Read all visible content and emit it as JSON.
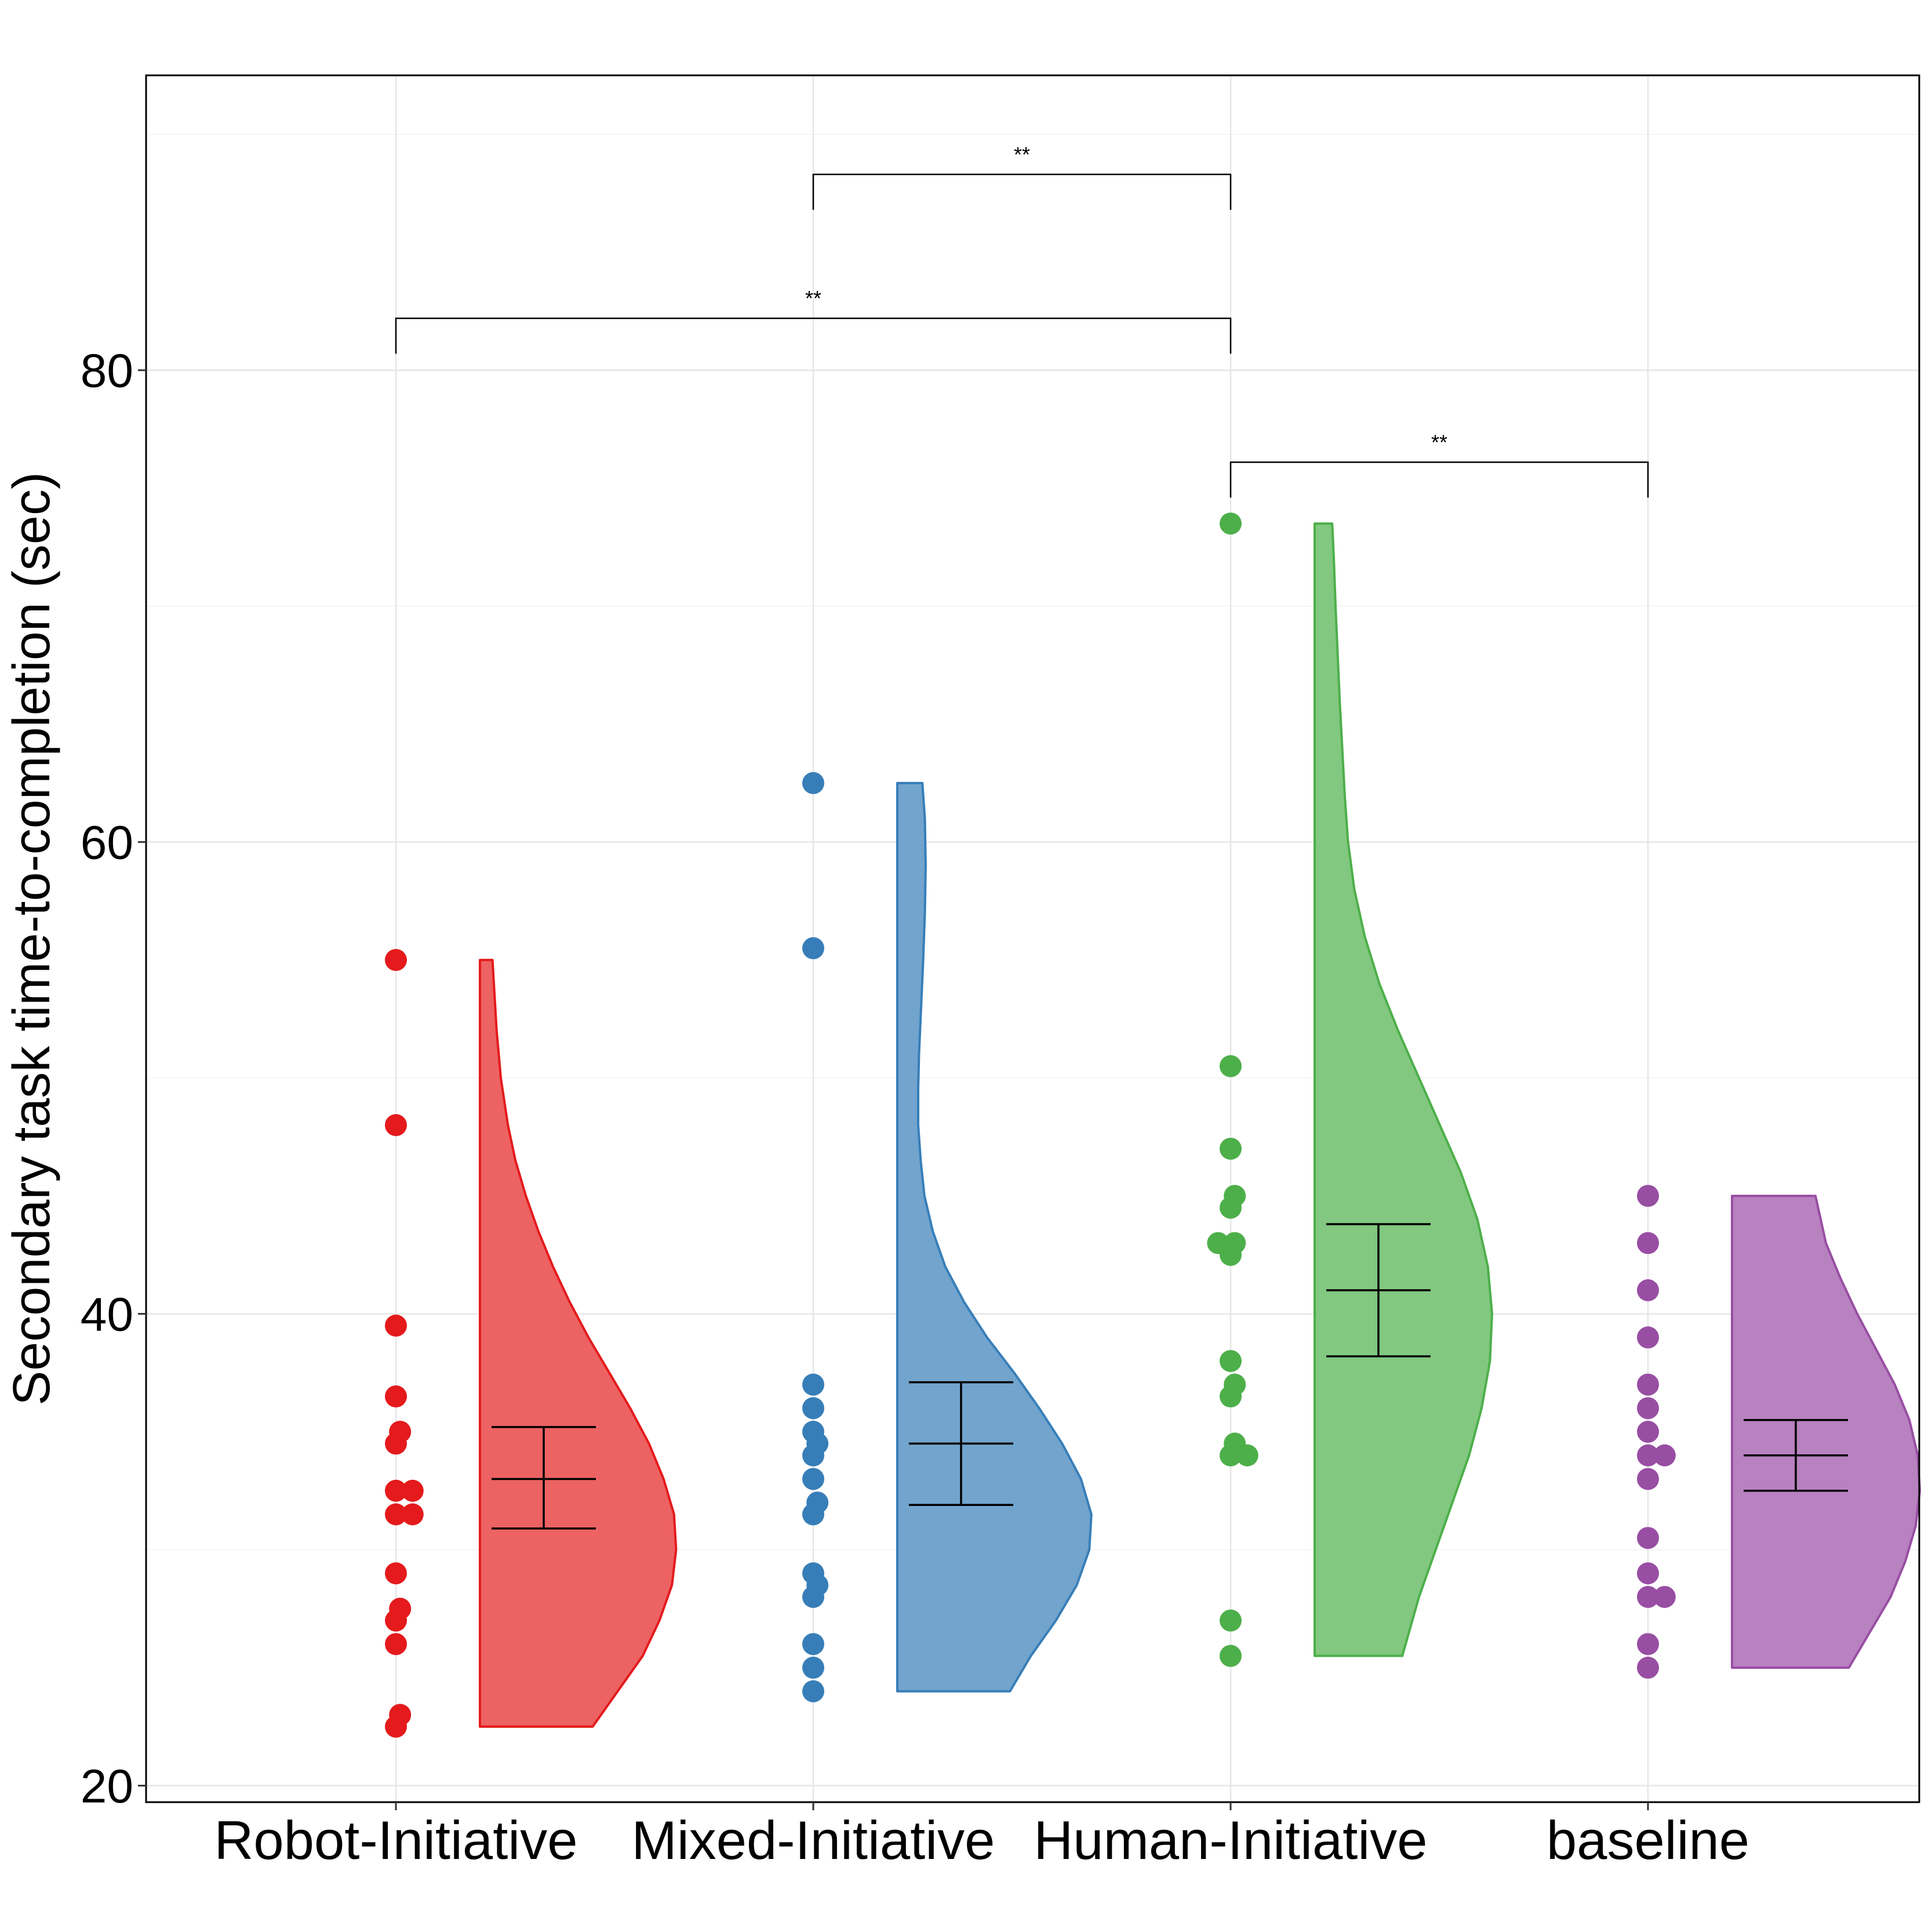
{
  "chart_data": {
    "type": "raincloud",
    "ylabel": "Secondary task time-to-completion (sec)",
    "xlabel": "",
    "ylim": [
      19.3,
      92.5
    ],
    "yticks": [
      20,
      40,
      60,
      80
    ],
    "grid": true,
    "categories": [
      "Robot-Initiative",
      "Mixed-Initiative",
      "Human-Initiative",
      "baseline"
    ],
    "series": [
      {
        "name": "Robot-Initiative",
        "color": "#e41a1c",
        "fill": "#ed6263",
        "points": [
          [
            0,
            55
          ],
          [
            0,
            48
          ],
          [
            0,
            39.5
          ],
          [
            0,
            36.5
          ],
          [
            0.01,
            35
          ],
          [
            0,
            34.5
          ],
          [
            0,
            32.5
          ],
          [
            0.04,
            32.5
          ],
          [
            0,
            31.5
          ],
          [
            0.04,
            31.5
          ],
          [
            0,
            29
          ],
          [
            0.01,
            27.5
          ],
          [
            0,
            27
          ],
          [
            0,
            26
          ],
          [
            0.01,
            23
          ],
          [
            0,
            22.5
          ]
        ],
        "violin": [
          [
            22.5,
            0.27
          ],
          [
            24,
            0.33
          ],
          [
            25.5,
            0.39
          ],
          [
            27,
            0.43
          ],
          [
            28.5,
            0.46
          ],
          [
            30,
            0.47
          ],
          [
            31.5,
            0.465
          ],
          [
            33,
            0.44
          ],
          [
            34.5,
            0.405
          ],
          [
            36,
            0.36
          ],
          [
            37.5,
            0.31
          ],
          [
            39,
            0.26
          ],
          [
            40.5,
            0.215
          ],
          [
            42,
            0.175
          ],
          [
            43.5,
            0.14
          ],
          [
            45,
            0.11
          ],
          [
            46.5,
            0.085
          ],
          [
            48,
            0.067
          ],
          [
            50,
            0.05
          ],
          [
            52,
            0.04
          ],
          [
            55,
            0.03
          ]
        ],
        "mean": 33,
        "ci": [
          30.9,
          35.2
        ]
      },
      {
        "name": "Mixed-Initiative",
        "color": "#377eb8",
        "fill": "#72a4cd",
        "points": [
          [
            0,
            62.5
          ],
          [
            0,
            55.5
          ],
          [
            0,
            37
          ],
          [
            0,
            36
          ],
          [
            0,
            35
          ],
          [
            0.01,
            34.5
          ],
          [
            0,
            34
          ],
          [
            0,
            33
          ],
          [
            0.01,
            32
          ],
          [
            0,
            31.5
          ],
          [
            0,
            29
          ],
          [
            0.01,
            28.5
          ],
          [
            0,
            28
          ],
          [
            0,
            26
          ],
          [
            0,
            25
          ],
          [
            0,
            24
          ]
        ],
        "violin": [
          [
            24,
            0.27
          ],
          [
            25.5,
            0.32
          ],
          [
            27,
            0.38
          ],
          [
            28.5,
            0.43
          ],
          [
            30,
            0.46
          ],
          [
            31.5,
            0.465
          ],
          [
            33,
            0.44
          ],
          [
            34.5,
            0.395
          ],
          [
            36,
            0.34
          ],
          [
            37.5,
            0.28
          ],
          [
            39,
            0.215
          ],
          [
            40.5,
            0.16
          ],
          [
            42,
            0.115
          ],
          [
            43.5,
            0.085
          ],
          [
            45,
            0.065
          ],
          [
            46.5,
            0.056
          ],
          [
            48,
            0.05
          ],
          [
            49.5,
            0.05
          ],
          [
            51,
            0.052
          ],
          [
            53,
            0.057
          ],
          [
            55,
            0.062
          ],
          [
            57,
            0.066
          ],
          [
            59,
            0.068
          ],
          [
            61,
            0.066
          ],
          [
            62.5,
            0.06
          ]
        ],
        "mean": 34.5,
        "ci": [
          31.9,
          37.1
        ]
      },
      {
        "name": "Human-Initiative",
        "color": "#4daf4a",
        "fill": "#82c880",
        "points": [
          [
            0,
            73.5
          ],
          [
            0,
            50.5
          ],
          [
            0,
            47
          ],
          [
            0.01,
            45
          ],
          [
            0,
            44.5
          ],
          [
            -0.03,
            43
          ],
          [
            0.01,
            43
          ],
          [
            0,
            42.5
          ],
          [
            0,
            38
          ],
          [
            0.01,
            37
          ],
          [
            0,
            36.5
          ],
          [
            0.01,
            34.5
          ],
          [
            0,
            34
          ],
          [
            0.04,
            34
          ],
          [
            0,
            27
          ],
          [
            0,
            25.5
          ]
        ],
        "violin": [
          [
            25.5,
            0.21
          ],
          [
            28,
            0.25
          ],
          [
            30,
            0.29
          ],
          [
            32,
            0.33
          ],
          [
            34,
            0.37
          ],
          [
            36,
            0.4
          ],
          [
            38,
            0.42
          ],
          [
            40,
            0.425
          ],
          [
            42,
            0.415
          ],
          [
            44,
            0.39
          ],
          [
            46,
            0.35
          ],
          [
            48,
            0.3
          ],
          [
            50,
            0.25
          ],
          [
            52,
            0.2
          ],
          [
            54,
            0.155
          ],
          [
            56,
            0.12
          ],
          [
            58,
            0.095
          ],
          [
            60,
            0.08
          ],
          [
            62,
            0.072
          ],
          [
            64,
            0.066
          ],
          [
            66,
            0.06
          ],
          [
            68,
            0.055
          ],
          [
            70,
            0.05
          ],
          [
            72,
            0.046
          ],
          [
            73.5,
            0.042
          ]
        ],
        "mean": 41,
        "ci": [
          38.2,
          43.8
        ]
      },
      {
        "name": "baseline",
        "color": "#984ea3",
        "fill": "#b881c0",
        "points": [
          [
            0,
            45
          ],
          [
            0,
            43
          ],
          [
            0,
            41
          ],
          [
            0,
            39
          ],
          [
            0,
            37
          ],
          [
            0,
            36
          ],
          [
            0,
            35
          ],
          [
            0,
            34
          ],
          [
            0.04,
            34
          ],
          [
            0,
            33
          ],
          [
            0,
            30.5
          ],
          [
            0,
            29
          ],
          [
            0,
            28
          ],
          [
            0.04,
            28
          ],
          [
            0,
            26
          ],
          [
            0,
            25
          ]
        ],
        "violin": [
          [
            25,
            0.28
          ],
          [
            26.5,
            0.33
          ],
          [
            28,
            0.38
          ],
          [
            29.5,
            0.415
          ],
          [
            31,
            0.44
          ],
          [
            32.5,
            0.45
          ],
          [
            34,
            0.445
          ],
          [
            35.5,
            0.425
          ],
          [
            37,
            0.39
          ],
          [
            38.5,
            0.345
          ],
          [
            40,
            0.3
          ],
          [
            41.5,
            0.26
          ],
          [
            43,
            0.225
          ],
          [
            45,
            0.2
          ]
        ],
        "mean": 34,
        "ci": [
          32.5,
          35.5
        ]
      }
    ],
    "significance": [
      {
        "from": "Mixed-Initiative",
        "to": "Human-Initiative",
        "label": "**",
        "y_bar": 88.3,
        "y_leg": 86.8
      },
      {
        "from": "Robot-Initiative",
        "to": "Human-Initiative",
        "label": "**",
        "y_bar": 82.2,
        "y_leg": 80.7
      },
      {
        "from": "Human-Initiative",
        "to": "baseline",
        "label": "**",
        "y_bar": 76.1,
        "y_leg": 74.6
      }
    ]
  }
}
